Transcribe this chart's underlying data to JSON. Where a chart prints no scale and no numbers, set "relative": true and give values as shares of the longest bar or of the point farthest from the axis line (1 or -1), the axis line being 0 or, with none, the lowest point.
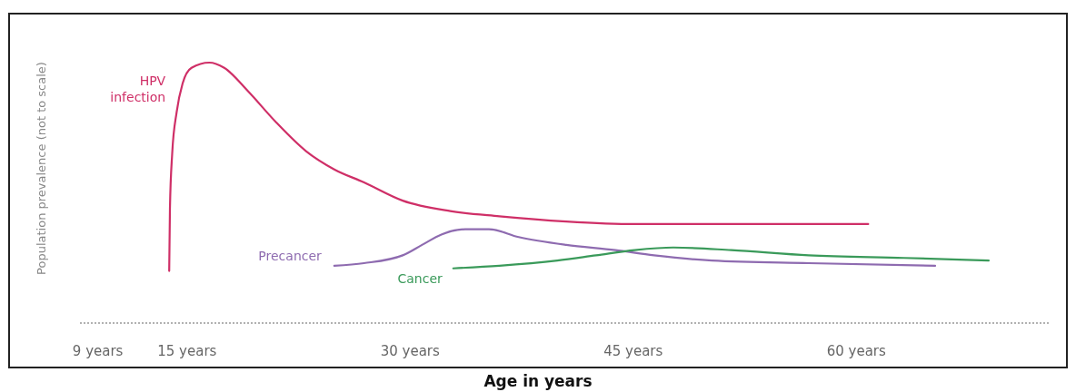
{
  "chart_data": {
    "type": "line",
    "relative": true,
    "xlabel": "Age in years",
    "ylabel": "Population prevalence (not to scale)",
    "xlim": [
      7.8,
      73
    ],
    "xticks": [
      {
        "value": 9,
        "label": "9 years"
      },
      {
        "value": 15,
        "label": "15 years"
      },
      {
        "value": 30,
        "label": "30 years"
      },
      {
        "value": 45,
        "label": "45 years"
      },
      {
        "value": 60,
        "label": "60 years"
      }
    ],
    "series": [
      {
        "name": "HPV infection",
        "color": "#cf2f67",
        "x": [
          13.8,
          13.85,
          14.0,
          14.3,
          14.7,
          15.3,
          16.5,
          17.5,
          19.1,
          21.0,
          23.0,
          24.9,
          26.9,
          29.5,
          32.7,
          36.0,
          40.5,
          45.1,
          50.3,
          60.8
        ],
        "values": [
          0.2,
          0.44,
          0.65,
          0.81,
          0.92,
          0.98,
          1.0,
          0.98,
          0.89,
          0.77,
          0.66,
          0.59,
          0.54,
          0.47,
          0.43,
          0.41,
          0.39,
          0.38,
          0.38,
          0.38
        ]
      },
      {
        "name": "Precancer",
        "color": "#8e6bb0",
        "x": [
          24.9,
          26.9,
          29.5,
          30.8,
          32.1,
          33.7,
          35.3,
          37.3,
          40.5,
          43.8,
          46.4,
          50.3,
          56.8,
          65.3
        ],
        "values": [
          0.22,
          0.23,
          0.26,
          0.3,
          0.34,
          0.36,
          0.36,
          0.33,
          0.3,
          0.28,
          0.26,
          0.24,
          0.23,
          0.22
        ]
      },
      {
        "name": "Cancer",
        "color": "#3a9a5a",
        "x": [
          32.9,
          36.0,
          39.9,
          42.5,
          45.1,
          47.7,
          51.6,
          56.8,
          63.2,
          68.9
        ],
        "values": [
          0.21,
          0.22,
          0.24,
          0.26,
          0.28,
          0.29,
          0.28,
          0.26,
          0.25,
          0.24
        ]
      }
    ]
  }
}
